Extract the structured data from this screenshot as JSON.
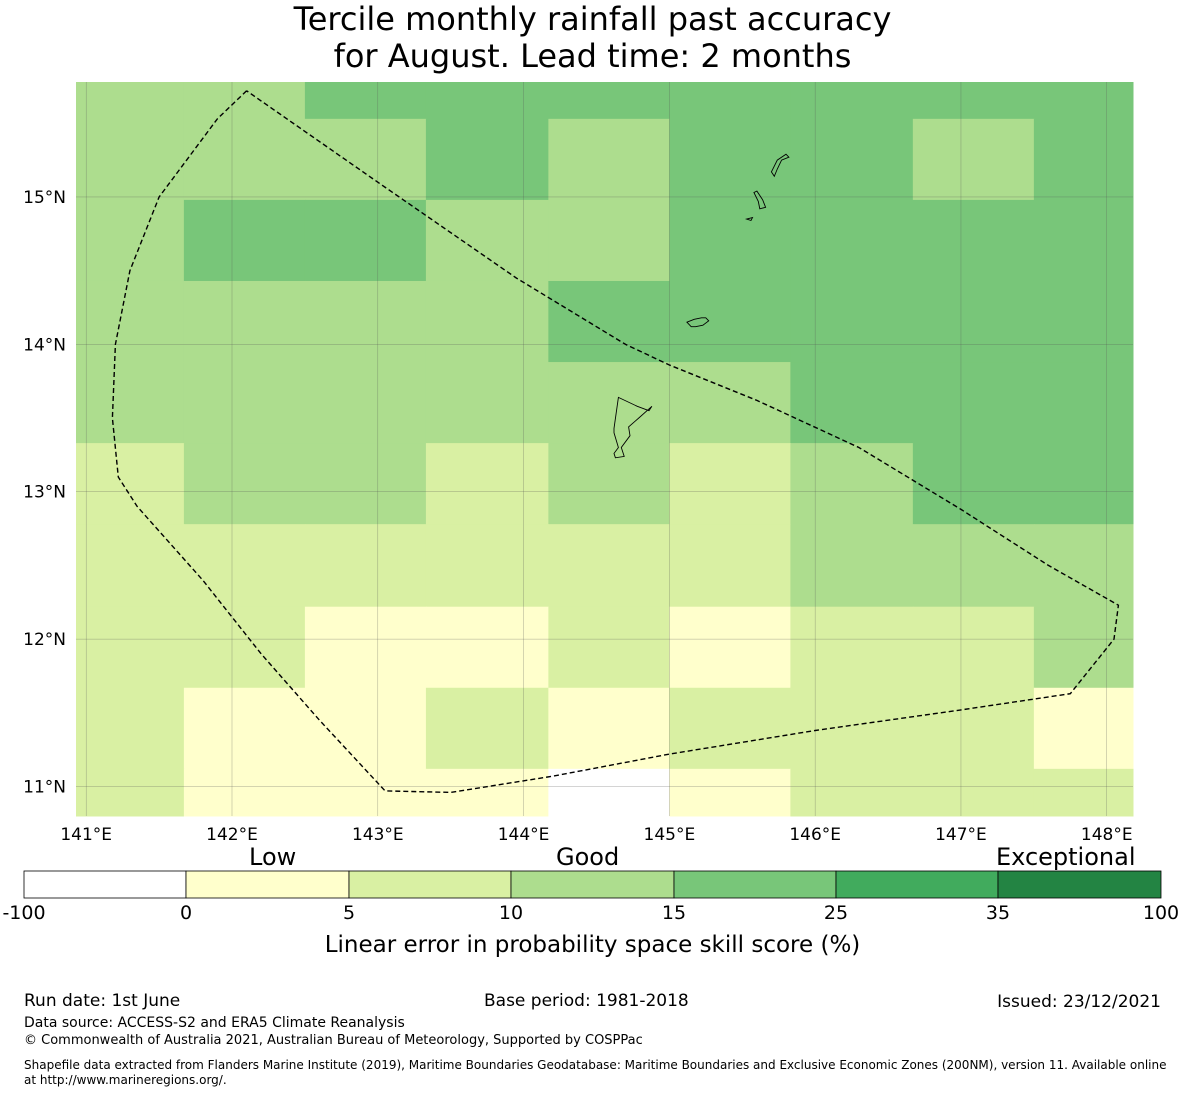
{
  "title": {
    "line1": "Tercile monthly rainfall past accuracy",
    "line2": "for August. Lead time: 2 months"
  },
  "map": {
    "lon_ticks": [
      "141°E",
      "142°E",
      "143°E",
      "144°E",
      "145°E",
      "146°E",
      "147°E",
      "148°E"
    ],
    "lat_ticks": [
      "15°N",
      "14°N",
      "13°N",
      "12°N",
      "11°N"
    ],
    "lon_range": [
      140.93,
      148.18
    ],
    "lat_range": [
      10.8,
      15.78
    ],
    "grid": {
      "lon_edges": [
        140.93,
        141.67,
        142.5,
        143.33,
        144.17,
        145.0,
        145.83,
        146.67,
        147.5,
        148.18
      ],
      "lat_edges": [
        15.78,
        15.53,
        14.98,
        14.43,
        13.88,
        13.33,
        12.78,
        12.22,
        11.67,
        11.12,
        10.8
      ],
      "classes_by_row": [
        [
          3,
          3,
          4,
          4,
          4,
          4,
          4,
          4,
          4
        ],
        [
          3,
          3,
          3,
          4,
          3,
          4,
          4,
          3,
          4
        ],
        [
          3,
          4,
          4,
          3,
          3,
          4,
          4,
          4,
          4
        ],
        [
          3,
          3,
          3,
          3,
          4,
          4,
          4,
          4,
          4
        ],
        [
          3,
          3,
          3,
          3,
          3,
          3,
          4,
          4,
          4
        ],
        [
          2,
          3,
          3,
          2,
          3,
          2,
          3,
          4,
          4
        ],
        [
          2,
          2,
          2,
          2,
          2,
          2,
          3,
          3,
          3
        ],
        [
          2,
          2,
          1,
          1,
          2,
          1,
          2,
          2,
          3
        ],
        [
          2,
          1,
          1,
          2,
          1,
          2,
          2,
          2,
          1
        ],
        [
          2,
          1,
          1,
          1,
          0,
          1,
          2,
          2,
          2
        ]
      ]
    },
    "eez_boundary": [
      [
        142.1,
        15.72
      ],
      [
        141.9,
        15.53
      ],
      [
        141.5,
        15.0
      ],
      [
        141.3,
        14.5
      ],
      [
        141.2,
        14.0
      ],
      [
        141.18,
        13.5
      ],
      [
        141.22,
        13.1
      ],
      [
        141.35,
        12.9
      ],
      [
        141.8,
        12.4
      ],
      [
        142.2,
        11.9
      ],
      [
        142.6,
        11.45
      ],
      [
        143.05,
        10.97
      ],
      [
        143.5,
        10.96
      ],
      [
        144.2,
        11.07
      ],
      [
        145.0,
        11.22
      ],
      [
        146.0,
        11.38
      ],
      [
        147.0,
        11.52
      ],
      [
        147.75,
        11.63
      ],
      [
        148.05,
        12.0
      ],
      [
        148.08,
        12.23
      ],
      [
        147.6,
        12.5
      ],
      [
        147.0,
        12.88
      ],
      [
        146.3,
        13.3
      ],
      [
        145.6,
        13.62
      ],
      [
        145.0,
        13.86
      ],
      [
        144.7,
        14.0
      ],
      [
        143.95,
        14.45
      ],
      [
        143.0,
        15.1
      ],
      [
        142.1,
        15.72
      ]
    ],
    "islands": [
      {
        "name": "Guam",
        "points": [
          [
            144.65,
            13.64
          ],
          [
            144.78,
            13.58
          ],
          [
            144.86,
            13.55
          ],
          [
            144.88,
            13.58
          ],
          [
            144.79,
            13.5
          ],
          [
            144.72,
            13.44
          ],
          [
            144.73,
            13.38
          ],
          [
            144.67,
            13.3
          ],
          [
            144.69,
            13.24
          ],
          [
            144.63,
            13.23
          ],
          [
            144.62,
            13.26
          ],
          [
            144.65,
            13.3
          ],
          [
            144.62,
            13.4
          ],
          [
            144.62,
            13.43
          ]
        ]
      },
      {
        "name": "Rota",
        "points": [
          [
            145.12,
            14.15
          ],
          [
            145.17,
            14.17
          ],
          [
            145.22,
            14.18
          ],
          [
            145.25,
            14.18
          ],
          [
            145.27,
            14.16
          ],
          [
            145.23,
            14.13
          ],
          [
            145.18,
            14.12
          ],
          [
            145.15,
            14.12
          ]
        ]
      },
      {
        "name": "Tinian",
        "points": [
          [
            145.58,
            15.03
          ],
          [
            145.6,
            15.04
          ],
          [
            145.64,
            14.98
          ],
          [
            145.66,
            14.93
          ],
          [
            145.62,
            14.92
          ],
          [
            145.61,
            14.97
          ]
        ]
      },
      {
        "name": "Saipan",
        "points": [
          [
            145.7,
            15.17
          ],
          [
            145.74,
            15.25
          ],
          [
            145.8,
            15.29
          ],
          [
            145.82,
            15.27
          ],
          [
            145.77,
            15.25
          ],
          [
            145.74,
            15.19
          ],
          [
            145.72,
            15.14
          ]
        ]
      },
      {
        "name": "Aguijan",
        "points": [
          [
            145.53,
            14.85
          ],
          [
            145.57,
            14.86
          ],
          [
            145.56,
            14.84
          ]
        ]
      }
    ]
  },
  "colorbar": {
    "category_labels": [
      "Low",
      "Good",
      "Exceptional"
    ],
    "ticks": [
      "-100",
      "0",
      "5",
      "10",
      "15",
      "25",
      "35",
      "100"
    ],
    "colors": [
      "#ffffff",
      "#ffffcc",
      "#d9f0a3",
      "#addd8e",
      "#78c679",
      "#41ab5d",
      "#238443"
    ],
    "title": "Linear error in probability space skill score (%)"
  },
  "footer": {
    "run_date": "Run date: 1st June",
    "base_period": "Base period: 1981-2018",
    "issued": "Issued: 23/12/2021",
    "data_source": "Data source: ACCESS-S2 and ERA5 Climate Reanalysis",
    "copyright": "© Commonwealth of Australia 2021, Australian Bureau of Meteorology, Supported by COSPPac",
    "shapefile_note": "Shapefile data extracted from Flanders Marine Institute (2019), Maritime Boundaries Geodatabase: Maritime Boundaries and Exclusive Economic Zones (200NM), version 11. Available online at http://www.marineregions.org/."
  }
}
